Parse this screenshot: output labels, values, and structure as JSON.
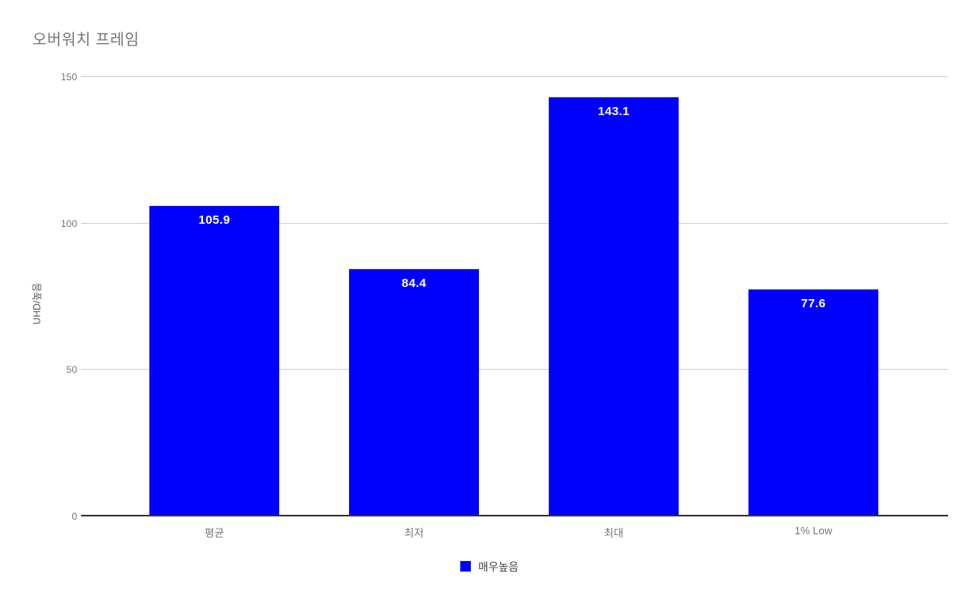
{
  "chart_data": {
    "type": "bar",
    "title": "오버워치 프레임",
    "ylabel": "UHD/높음",
    "xlabel": "",
    "categories": [
      "평균",
      "최저",
      "최대",
      "1% Low"
    ],
    "series": [
      {
        "name": "매우높음",
        "color": "#0000ff",
        "values": [
          105.9,
          84.4,
          143.1,
          77.6
        ]
      }
    ],
    "value_labels": [
      "105.9",
      "84.4",
      "143.1",
      "77.6"
    ],
    "ylim": [
      0,
      150
    ],
    "yticks": [
      0,
      50,
      100,
      150
    ],
    "grid": true,
    "legend_position": "bottom"
  },
  "colors": {
    "bar": "#0000ff",
    "gridline": "#cccccc",
    "baseline": "#333333",
    "title_text": "#757575",
    "tick_text": "#757575",
    "axis_title_text": "#555555",
    "legend_text": "#3c4043",
    "bar_value_text": "#ffffff",
    "background": "#ffffff"
  }
}
